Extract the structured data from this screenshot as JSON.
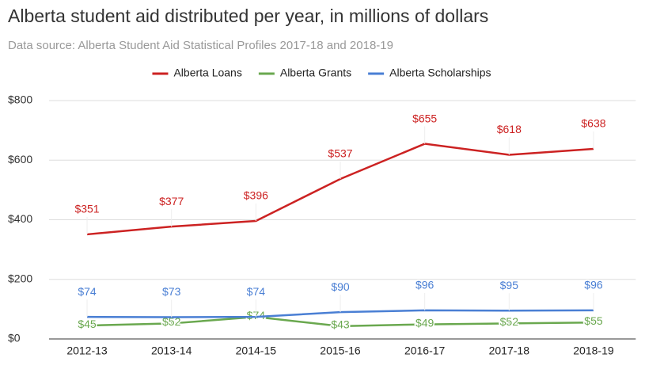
{
  "chart_data": {
    "type": "line",
    "title": "Alberta student aid distributed per year, in millions of dollars",
    "subtitle": "Data source: Alberta Student Aid Statistical Profiles 2017-18 and 2018-19",
    "categories": [
      "2012-13",
      "2013-14",
      "2014-15",
      "2015-16",
      "2016-17",
      "2017-18",
      "2018-19"
    ],
    "series": [
      {
        "name": "Alberta Loans",
        "color": "#cc2222",
        "values": [
          351,
          377,
          396,
          537,
          655,
          618,
          638
        ],
        "value_labels": [
          "$351",
          "$377",
          "$396",
          "$537",
          "$655",
          "$618",
          "$638"
        ]
      },
      {
        "name": "Alberta Grants",
        "color": "#6aa84f",
        "values": [
          45,
          52,
          74,
          43,
          49,
          52,
          55
        ],
        "value_labels": [
          "$45",
          "$52",
          "$74",
          "$43",
          "$49",
          "$52",
          "$55"
        ]
      },
      {
        "name": "Alberta Scholarships",
        "color": "#4a7fd4",
        "values": [
          74,
          73,
          74,
          90,
          96,
          95,
          96
        ],
        "value_labels": [
          "$74",
          "$73",
          "$74",
          "$90",
          "$96",
          "$95",
          "$96"
        ]
      }
    ],
    "ylim": [
      0,
      800
    ],
    "yticks": [
      {
        "value": 0,
        "label": "$0"
      },
      {
        "value": 200,
        "label": "$200"
      },
      {
        "value": 400,
        "label": "$400"
      },
      {
        "value": 600,
        "label": "$600"
      },
      {
        "value": 800,
        "label": "$800"
      }
    ],
    "grid": true,
    "legend": "top"
  }
}
